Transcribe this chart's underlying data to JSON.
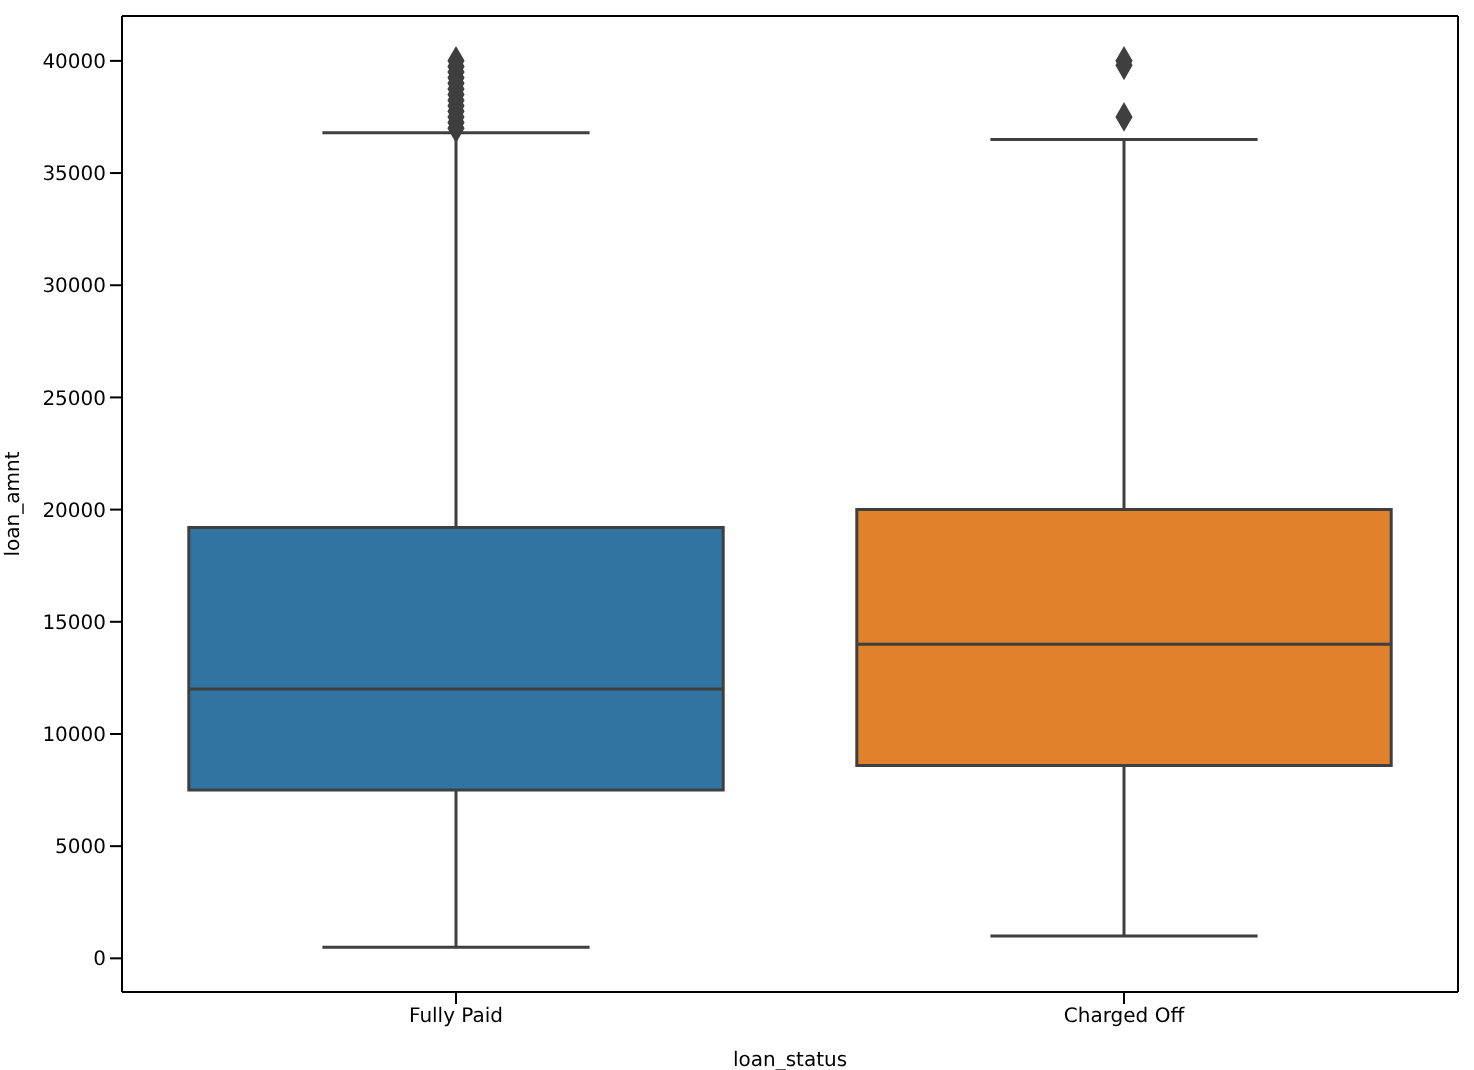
{
  "chart_data": {
    "type": "box",
    "xlabel": "loan_status",
    "ylabel": "loan_amnt",
    "categories": [
      "Fully Paid",
      "Charged Off"
    ],
    "colors": [
      "#3274a1",
      "#e1812c"
    ],
    "boxes": [
      {
        "low": 500,
        "q1": 7500,
        "median": 12000,
        "q3": 19200,
        "high": 36800,
        "outliers": [
          37000,
          37250,
          37500,
          37750,
          38000,
          38250,
          38500,
          38750,
          39000,
          39250,
          39500,
          39750,
          40000
        ]
      },
      {
        "low": 1000,
        "q1": 8600,
        "median": 14000,
        "q3": 20000,
        "high": 36500,
        "outliers": [
          37500,
          39800,
          40000
        ]
      }
    ],
    "ylim": [
      -1500,
      42000
    ],
    "yticks": [
      0,
      5000,
      10000,
      15000,
      20000,
      25000,
      30000,
      35000,
      40000
    ],
    "marker": "diamond"
  }
}
